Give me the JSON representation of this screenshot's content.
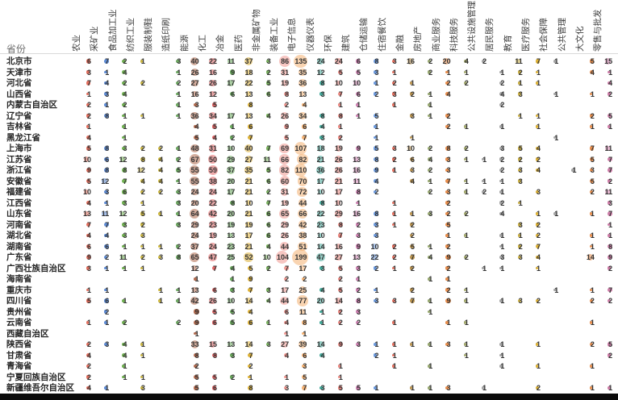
{
  "chart_data": {
    "type": "heatmap",
    "subtype": "bubble-matrix-table",
    "title": "",
    "corner_label": "省份",
    "legend_position": "none",
    "grid": false,
    "note": "Each cell shows a count; circle size scales with value, circle color is per industry column.",
    "columns": [
      {
        "label": "农业",
        "color": "#e2614e"
      },
      {
        "label": "采矿业",
        "color": "#4d7fd0"
      },
      {
        "label": "食品加工业",
        "color": "#62a83f"
      },
      {
        "label": "纺织工业",
        "color": "#c9b12d"
      },
      {
        "label": "服装制鞋",
        "color": "#c9b12d"
      },
      {
        "label": "造纸印刷",
        "color": "#5fa052"
      },
      {
        "label": "能源",
        "color": "#aa5b3c"
      },
      {
        "label": "化工",
        "color": "#e05555"
      },
      {
        "label": "冶金",
        "color": "#5aa04a"
      },
      {
        "label": "医药",
        "color": "#d9a81f"
      },
      {
        "label": "非金属矿物",
        "color": "#6cab4e"
      },
      {
        "label": "装备工业",
        "color": "#ef8d85"
      },
      {
        "label": "电子信息",
        "color": "#f3a963"
      },
      {
        "label": "仪器仪表",
        "color": "#2f9e8e"
      },
      {
        "label": "环保",
        "color": "#e97a72"
      },
      {
        "label": "建筑",
        "color": "#c873a8"
      },
      {
        "label": "仓储运输",
        "color": "#5b8ed8"
      },
      {
        "label": "住宿餐饮",
        "color": "#e2614e"
      },
      {
        "label": "金融",
        "color": "#b3873b"
      },
      {
        "label": "房地产",
        "color": "#8d9f62"
      },
      {
        "label": "商业服务",
        "color": "#e5823a"
      },
      {
        "label": "科技服务",
        "color": "#9aa05e"
      },
      {
        "label": "公共设施管理",
        "color": "#9c9c9c"
      },
      {
        "label": "居民服务",
        "color": "#9c9c9c"
      },
      {
        "label": "教育",
        "color": "#c3a52e"
      },
      {
        "label": "医疗服务",
        "color": "#d9a81f"
      },
      {
        "label": "社会保障",
        "color": "#9c9c9c"
      },
      {
        "label": "公共管理",
        "color": "#9c9c9c"
      },
      {
        "label": "大文化",
        "color": "#e5823a"
      },
      {
        "label": "零售与批发",
        "color": "#c96f9f"
      }
    ],
    "rows": [
      {
        "province": "北京市",
        "values": [
          6,
          7,
          2,
          1,
          null,
          3,
          40,
          22,
          11,
          37,
          3,
          86,
          135,
          24,
          24,
          6,
          8,
          3,
          16,
          2,
          20,
          4,
          2,
          null,
          11,
          7,
          1,
          null,
          5,
          15
        ]
      },
      {
        "province": "天津市",
        "values": [
          3,
          1,
          4,
          null,
          null,
          1,
          26,
          16,
          9,
          18,
          2,
          31,
          35,
          12,
          5,
          5,
          3,
          1,
          null,
          2,
          1,
          1,
          null,
          1,
          2,
          1,
          null,
          null,
          4,
          1
        ]
      },
      {
        "province": "河北省",
        "values": [
          7,
          4,
          2,
          2,
          null,
          2,
          27,
          26,
          17,
          22,
          5,
          19,
          36,
          8,
          10,
          10,
          1,
          2,
          1,
          null,
          2,
          2,
          null,
          2,
          1,
          1,
          null,
          null,
          null,
          4
        ]
      },
      {
        "province": "山西省",
        "values": [
          1,
          3,
          4,
          null,
          null,
          1,
          16,
          12,
          6,
          13,
          6,
          8,
          13,
          3,
          7,
          6,
          2,
          3,
          2,
          1,
          4,
          null,
          null,
          4,
          3,
          null,
          1,
          null,
          1,
          2
        ]
      },
      {
        "province": "内蒙古自治区",
        "values": [
          2,
          1,
          2,
          null,
          null,
          1,
          3,
          5,
          null,
          8,
          null,
          2,
          4,
          null,
          1,
          1,
          null,
          1,
          null,
          1,
          null,
          null,
          null,
          2,
          null,
          null,
          null,
          null,
          null,
          null
        ]
      },
      {
        "province": "辽宁省",
        "values": [
          2,
          8,
          1,
          1,
          null,
          1,
          36,
          34,
          17,
          13,
          4,
          26,
          34,
          8,
          8,
          1,
          5,
          null,
          3,
          1,
          2,
          null,
          null,
          null,
          1,
          1,
          null,
          null,
          2,
          5
        ]
      },
      {
        "province": "吉林省",
        "values": [
          1,
          null,
          1,
          null,
          null,
          null,
          4,
          5,
          1,
          6,
          null,
          9,
          6,
          4,
          1,
          null,
          1,
          null,
          null,
          null,
          2,
          1,
          null,
          1,
          null,
          1,
          null,
          null,
          1,
          1
        ]
      },
      {
        "province": "黑龙江省",
        "values": [
          4,
          null,
          1,
          null,
          null,
          null,
          5,
          4,
          2,
          7,
          null,
          5,
          7,
          3,
          2,
          null,
          1,
          null,
          1,
          null,
          null,
          null,
          null,
          null,
          null,
          null,
          1,
          null,
          null,
          null
        ]
      },
      {
        "province": "上海市",
        "values": [
          5,
          8,
          3,
          2,
          2,
          1,
          48,
          31,
          10,
          40,
          7,
          69,
          107,
          18,
          19,
          9,
          5,
          3,
          10,
          2,
          8,
          2,
          null,
          3,
          5,
          4,
          null,
          null,
          7,
          11
        ]
      },
      {
        "province": "江苏省",
        "values": [
          10,
          6,
          12,
          8,
          4,
          2,
          67,
          50,
          29,
          27,
          11,
          66,
          82,
          21,
          26,
          13,
          8,
          2,
          6,
          4,
          3,
          1,
          1,
          2,
          2,
          2,
          null,
          null,
          5,
          7
        ]
      },
      {
        "province": "浙江省",
        "values": [
          9,
          8,
          8,
          12,
          4,
          5,
          55,
          59,
          37,
          35,
          5,
          82,
          110,
          36,
          26,
          16,
          9,
          1,
          3,
          2,
          3,
          null,
          null,
          2,
          3,
          4,
          null,
          1,
          3,
          7
        ]
      },
      {
        "province": "安徽省",
        "values": [
          5,
          12,
          7,
          4,
          4,
          1,
          55,
          38,
          20,
          21,
          6,
          60,
          70,
          17,
          21,
          11,
          4,
          null,
          4,
          1,
          7,
          1,
          1,
          1,
          3,
          null,
          null,
          null,
          5,
          2
        ]
      },
      {
        "province": "福建省",
        "values": [
          10,
          3,
          6,
          2,
          2,
          3,
          24,
          24,
          17,
          21,
          2,
          31,
          72,
          10,
          17,
          8,
          2,
          null,
          null,
          2,
          3,
          1,
          2,
          1,
          null,
          3,
          null,
          null,
          2,
          11
        ]
      },
      {
        "province": "江西省",
        "values": [
          4,
          1,
          3,
          1,
          null,
          3,
          20,
          22,
          8,
          10,
          7,
          19,
          44,
          8,
          10,
          1,
          null,
          1,
          null,
          null,
          2,
          null,
          null,
          2,
          1,
          null,
          null,
          null,
          null,
          3
        ]
      },
      {
        "province": "山东省",
        "values": [
          13,
          11,
          12,
          5,
          1,
          1,
          64,
          42,
          20,
          21,
          6,
          65,
          66,
          22,
          29,
          16,
          8,
          1,
          1,
          3,
          2,
          2,
          null,
          4,
          null,
          1,
          1,
          null,
          1,
          7
        ]
      },
      {
        "province": "河南省",
        "values": [
          7,
          7,
          3,
          2,
          null,
          3,
          29,
          23,
          19,
          19,
          6,
          29,
          42,
          23,
          8,
          2,
          3,
          1,
          2,
          null,
          5,
          null,
          null,
          null,
          3,
          2,
          null,
          null,
          null,
          1
        ]
      },
      {
        "province": "湖北省",
        "values": [
          4,
          4,
          3,
          3,
          null,
          null,
          24,
          19,
          13,
          17,
          6,
          26,
          38,
          10,
          7,
          3,
          3,
          null,
          2,
          null,
          1,
          1,
          null,
          1,
          1,
          2,
          null,
          null,
          1,
          1
        ]
      },
      {
        "province": "湖南省",
        "values": [
          6,
          6,
          1,
          1,
          1,
          2,
          37,
          24,
          23,
          21,
          4,
          44,
          51,
          14,
          16,
          9,
          10,
          2,
          5,
          1,
          2,
          null,
          null,
          1,
          2,
          7,
          null,
          null,
          1,
          8
        ]
      },
      {
        "province": "广东省",
        "values": [
          9,
          2,
          11,
          2,
          3,
          8,
          65,
          47,
          25,
          52,
          10,
          104,
          199,
          47,
          27,
          13,
          22,
          2,
          7,
          4,
          9,
          2,
          null,
          3,
          3,
          4,
          null,
          null,
          14,
          9
        ]
      },
      {
        "province": "广西壮族自治区",
        "values": [
          3,
          1,
          1,
          1,
          null,
          null,
          12,
          7,
          4,
          5,
          2,
          7,
          17,
          3,
          5,
          3,
          2,
          1,
          2,
          null,
          2,
          null,
          1,
          1,
          null,
          1,
          null,
          null,
          null,
          2
        ]
      },
      {
        "province": "海南省",
        "values": [
          null,
          null,
          null,
          null,
          null,
          null,
          1,
          null,
          1,
          9,
          null,
          2,
          2,
          null,
          2,
          1,
          null,
          null,
          null,
          1,
          1,
          null,
          null,
          null,
          null,
          null,
          null,
          null,
          null,
          null
        ]
      },
      {
        "province": "重庆市",
        "values": [
          1,
          1,
          null,
          null,
          1,
          1,
          13,
          6,
          3,
          7,
          3,
          17,
          25,
          4,
          5,
          2,
          1,
          null,
          2,
          null,
          2,
          1,
          null,
          null,
          null,
          null,
          1,
          null,
          1,
          7
        ]
      },
      {
        "province": "四川省",
        "values": [
          5,
          6,
          1,
          null,
          1,
          1,
          42,
          26,
          10,
          14,
          4,
          44,
          77,
          20,
          14,
          8,
          3,
          3,
          7,
          1,
          9,
          1,
          null,
          1,
          3,
          2,
          null,
          null,
          2,
          2
        ]
      },
      {
        "province": "贵州省",
        "values": [
          null,
          2,
          null,
          null,
          null,
          null,
          9,
          5,
          5,
          4,
          null,
          6,
          11,
          1,
          2,
          3,
          null,
          null,
          null,
          1,
          null,
          null,
          null,
          null,
          null,
          null,
          null,
          null,
          null,
          null
        ]
      },
      {
        "province": "云南省",
        "values": [
          1,
          1,
          2,
          null,
          null,
          2,
          9,
          6,
          5,
          6,
          1,
          4,
          8,
          1,
          2,
          2,
          null,
          1,
          null,
          null,
          1,
          1,
          null,
          null,
          null,
          null,
          null,
          null,
          1,
          null
        ]
      },
      {
        "province": "西藏自治区",
        "values": [
          null,
          null,
          null,
          null,
          null,
          null,
          1,
          null,
          null,
          null,
          null,
          1,
          1,
          null,
          null,
          null,
          null,
          null,
          null,
          null,
          null,
          null,
          null,
          null,
          null,
          null,
          null,
          null,
          null,
          null
        ]
      },
      {
        "province": "陕西省",
        "values": [
          2,
          3,
          4,
          1,
          null,
          null,
          33,
          15,
          13,
          14,
          3,
          27,
          39,
          14,
          9,
          3,
          1,
          1,
          1,
          1,
          3,
          1,
          null,
          1,
          null,
          1,
          null,
          null,
          2,
          5
        ]
      },
      {
        "province": "甘肃省",
        "values": [
          4,
          null,
          4,
          1,
          null,
          null,
          8,
          8,
          3,
          7,
          null,
          4,
          6,
          4,
          null,
          null,
          2,
          1,
          null,
          null,
          null,
          1,
          null,
          1,
          null,
          null,
          null,
          null,
          null,
          2
        ]
      },
      {
        "province": "青海省",
        "values": [
          2,
          null,
          1,
          null,
          null,
          null,
          2,
          null,
          null,
          2,
          null,
          null,
          3,
          null,
          1,
          null,
          null,
          1,
          null,
          1,
          null,
          null,
          null,
          1,
          null,
          1,
          null,
          null,
          1,
          null
        ]
      },
      {
        "province": "宁夏回族自治区",
        "values": [
          2,
          null,
          1,
          1,
          null,
          null,
          5,
          5,
          2,
          1,
          null,
          1,
          5,
          null,
          1,
          null,
          null,
          null,
          null,
          null,
          null,
          null,
          null,
          null,
          null,
          null,
          null,
          null,
          null,
          null
        ]
      },
      {
        "province": "新疆维吾尔自治区",
        "values": [
          4,
          1,
          null,
          3,
          null,
          null,
          5,
          6,
          null,
          8,
          null,
          3,
          7,
          3,
          5,
          5,
          1,
          null,
          1,
          1,
          3,
          null,
          1,
          null,
          null,
          2,
          null,
          null,
          1,
          1
        ]
      }
    ]
  }
}
